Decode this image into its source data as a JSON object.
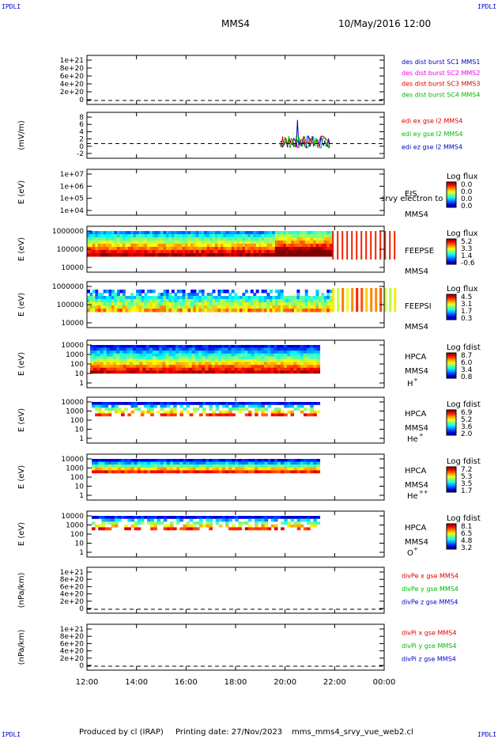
{
  "corner_label": "IPDLI",
  "header": {
    "spacecraft": "MMS4",
    "date": "10/May/2016 12:00"
  },
  "footer": {
    "producer": "Produced by cl (IRAP)",
    "printing": "Printing date: 27/Nov/2023",
    "script": "mms_mms4_srvy_vue_web2.cl"
  },
  "colors": {
    "red": "#dd0000",
    "green": "#00bb00",
    "blue": "#0000cc",
    "magenta": "#ee00ee"
  },
  "chart_data": {
    "type": "heatmap",
    "x_ticks": [
      "12:00",
      "14:00",
      "16:00",
      "18:00",
      "20:00",
      "22:00",
      "00:00"
    ],
    "xlim_hours": [
      12,
      24
    ],
    "panels": [
      {
        "id": "des-dist",
        "ylabel": "",
        "yticks": [
          "1e+21",
          "8e+20",
          "6e+20",
          "4e+20",
          "2e+20",
          "0"
        ],
        "zero_line": true,
        "legend": [
          {
            "text": "des dist burst SC1 MMS1",
            "color": "#0000cc"
          },
          {
            "text": "des dist burst SC2 MMS2",
            "color": "#ee00ee"
          },
          {
            "text": "des dist burst SC3 MMS3",
            "color": "#dd0000"
          },
          {
            "text": "des dist burst SC4 MMS4",
            "color": "#00bb00"
          }
        ]
      },
      {
        "id": "edi-e",
        "ylabel": "(mV/m)",
        "yticks": [
          "8",
          "6",
          "4",
          "2",
          "0",
          "-2"
        ],
        "zero_line": true,
        "legend": [
          {
            "text": "edi ex gse l2 MMS4",
            "color": "#dd0000"
          },
          {
            "text": "edi ey gse l2 MMS4",
            "color": "#00bb00"
          },
          {
            "text": "edi ez gse l2 MMS4",
            "color": "#0000cc"
          }
        ]
      },
      {
        "id": "eis",
        "ylabel": "E (eV)",
        "yticks": [
          "1e+07",
          "1e+06",
          "1e+05",
          "1e+04"
        ],
        "inst": "EIS",
        "sub": "MMS4",
        "note": "srvy electron to",
        "cbar_title": "Log flux",
        "cbar": [
          "0.0",
          "0.0",
          "0.0",
          "0.0"
        ]
      },
      {
        "id": "feepse",
        "ylabel": "E (eV)",
        "yticks": [
          "1000000",
          "100000",
          "10000"
        ],
        "inst": "FEEPSE",
        "sub": "MMS4",
        "cbar_title": "Log flux",
        "cbar": [
          "5.2",
          "3.3",
          "1.4",
          "-0.6"
        ]
      },
      {
        "id": "feepsi",
        "ylabel": "E (eV)",
        "yticks": [
          "1000000",
          "100000",
          "10000"
        ],
        "inst": "FEEPSI",
        "sub": "MMS4",
        "cbar_title": "Log flux",
        "cbar": [
          "4.5",
          "3.1",
          "1.7",
          "0.3"
        ]
      },
      {
        "id": "hpca-h",
        "ylabel": "E (eV)",
        "yticks": [
          "10000",
          "1000",
          "100",
          "10",
          "1"
        ],
        "inst": "HPCA",
        "sub": "MMS4",
        "species": "H",
        "charge": "+",
        "cbar_title": "Log fdist",
        "cbar": [
          "8.7",
          "6.0",
          "3.4",
          "0.8"
        ]
      },
      {
        "id": "hpca-he",
        "ylabel": "E (eV)",
        "yticks": [
          "10000",
          "1000",
          "100",
          "10",
          "1"
        ],
        "inst": "HPCA",
        "sub": "MMS4",
        "species": "He",
        "charge": "+",
        "cbar_title": "Log fdist",
        "cbar": [
          "6.9",
          "5.2",
          "3.6",
          "2.0"
        ]
      },
      {
        "id": "hpca-hepp",
        "ylabel": "E (eV)",
        "yticks": [
          "10000",
          "1000",
          "100",
          "10",
          "1"
        ],
        "inst": "HPCA",
        "sub": "MMS4",
        "species": "He",
        "charge": "++",
        "cbar_title": "Log fdist",
        "cbar": [
          "7.2",
          "5.3",
          "3.5",
          "1.7"
        ]
      },
      {
        "id": "hpca-o",
        "ylabel": "E (eV)",
        "yticks": [
          "10000",
          "1000",
          "100",
          "10",
          "1"
        ],
        "inst": "HPCA",
        "sub": "MMS4",
        "species": "O",
        "charge": "+",
        "cbar_title": "Log fdist",
        "cbar": [
          "8.1",
          "6.5",
          "4.8",
          "3.2"
        ]
      },
      {
        "id": "divpe",
        "ylabel": "(nPa/km)",
        "yticks": [
          "1e+21",
          "8e+20",
          "6e+20",
          "4e+20",
          "2e+20",
          "0"
        ],
        "zero_line": true,
        "legend": [
          {
            "text": "divPe x gse MMS4",
            "color": "#dd0000"
          },
          {
            "text": "divPe y gse MMS4",
            "color": "#00bb00"
          },
          {
            "text": "divPe z gse MMS4",
            "color": "#0000cc"
          }
        ]
      },
      {
        "id": "divpi",
        "ylabel": "(nPa/km)",
        "yticks": [
          "1e+21",
          "8e+20",
          "6e+20",
          "4e+20",
          "2e+20",
          "0"
        ],
        "zero_line": true,
        "legend": [
          {
            "text": "divPi x gse MMS4",
            "color": "#dd0000"
          },
          {
            "text": "divPi y gse MMS4",
            "color": "#00bb00"
          },
          {
            "text": "divPi z gse MMS4",
            "color": "#0000cc"
          }
        ]
      }
    ]
  }
}
